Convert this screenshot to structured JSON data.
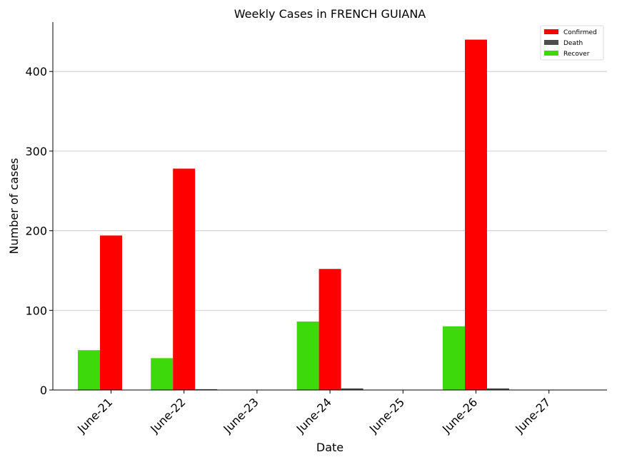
{
  "chart_data": {
    "type": "bar",
    "title": "Weekly Cases in FRENCH GUIANA",
    "xlabel": "Date",
    "ylabel": "Number of cases",
    "categories": [
      "June-21",
      "June-22",
      "June-23",
      "June-24",
      "June-25",
      "June-26",
      "June-27"
    ],
    "ylim": [
      0,
      462
    ],
    "yticks": [
      0,
      100,
      200,
      300,
      400
    ],
    "grid": "horizontal",
    "legend_position": "top-right",
    "series": [
      {
        "name": "Confirmed",
        "color": "#ff0000",
        "values": [
          194,
          278,
          0,
          152,
          0,
          440,
          0
        ]
      },
      {
        "name": "Death",
        "color": "#4d4d4d",
        "values": [
          0,
          1,
          0,
          2,
          0,
          2,
          0
        ]
      },
      {
        "name": "Recover",
        "color": "#3dd90b",
        "values": [
          50,
          40,
          0,
          86,
          0,
          80,
          0
        ]
      }
    ]
  }
}
